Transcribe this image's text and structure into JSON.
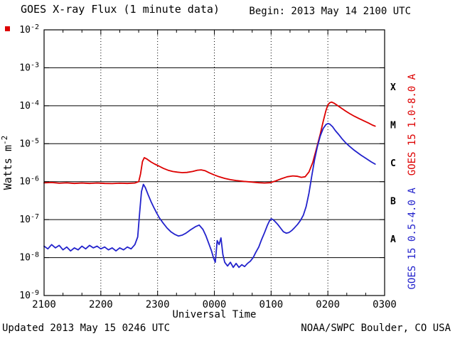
{
  "header": {
    "title": "GOES X-ray Flux (1 minute data)",
    "begin": "Begin: 2013 May 14 2100 UTC"
  },
  "footer": {
    "updated": "Updated 2013 May 15 0246 UTC",
    "source": "NOAA/SWPC Boulder, CO USA"
  },
  "chart_data": {
    "type": "line",
    "title": "GOES X-ray Flux (1 minute data)",
    "xlabel": "Universal Time",
    "ylabel_base": "Watts m",
    "ylabel_exponent": "-2",
    "x_tick_labels": [
      "2100",
      "2200",
      "2300",
      "0000",
      "0100",
      "0200",
      "0300"
    ],
    "x_range_minutes": [
      0,
      360
    ],
    "y_tick_labels": [
      "10^-2",
      "10^-3",
      "10^-4",
      "10^-5",
      "10^-6",
      "10^-7",
      "10^-8",
      "10^-9"
    ],
    "y_log_range": [
      -9,
      -2
    ],
    "grid": {
      "horizontal": "solid line per decade",
      "vertical": "dotted line per hour"
    },
    "flare_classes": [
      {
        "label": "X",
        "log_center": -3.5
      },
      {
        "label": "M",
        "log_center": -4.5
      },
      {
        "label": "C",
        "log_center": -5.5
      },
      {
        "label": "B",
        "log_center": -6.5
      },
      {
        "label": "A",
        "log_center": -7.5
      }
    ],
    "points_format": "[minutes since 2100 UTC, watts per square meter]",
    "series": [
      {
        "id": "goes15-long",
        "name": "GOES 15 1.0-8.0 A",
        "color": "#dd0000",
        "points": [
          [
            0,
            9.3e-07
          ],
          [
            8,
            9.5e-07
          ],
          [
            16,
            9.1e-07
          ],
          [
            24,
            9.3e-07
          ],
          [
            32,
            9e-07
          ],
          [
            40,
            9.2e-07
          ],
          [
            48,
            9e-07
          ],
          [
            56,
            9.2e-07
          ],
          [
            64,
            9e-07
          ],
          [
            72,
            8.9e-07
          ],
          [
            80,
            9.1e-07
          ],
          [
            88,
            9e-07
          ],
          [
            96,
            9.2e-07
          ],
          [
            100,
            1e-06
          ],
          [
            102,
            1.6e-06
          ],
          [
            104,
            3.4e-06
          ],
          [
            106,
            4.3e-06
          ],
          [
            109,
            3.9e-06
          ],
          [
            113,
            3.3e-06
          ],
          [
            117,
            2.9e-06
          ],
          [
            121,
            2.6e-06
          ],
          [
            126,
            2.25e-06
          ],
          [
            131,
            2e-06
          ],
          [
            136,
            1.85e-06
          ],
          [
            141,
            1.78e-06
          ],
          [
            146,
            1.73e-06
          ],
          [
            151,
            1.75e-06
          ],
          [
            157,
            1.85e-06
          ],
          [
            162,
            2e-06
          ],
          [
            166,
            2.05e-06
          ],
          [
            170,
            1.95e-06
          ],
          [
            175,
            1.7e-06
          ],
          [
            180,
            1.5e-06
          ],
          [
            185,
            1.35e-06
          ],
          [
            191,
            1.22e-06
          ],
          [
            197,
            1.13e-06
          ],
          [
            203,
            1.07e-06
          ],
          [
            211,
            1.02e-06
          ],
          [
            219,
            9.8e-07
          ],
          [
            227,
            9.4e-07
          ],
          [
            233,
            9.2e-07
          ],
          [
            239,
            9.4e-07
          ],
          [
            245,
            1.05e-06
          ],
          [
            251,
            1.2e-06
          ],
          [
            257,
            1.35e-06
          ],
          [
            263,
            1.42e-06
          ],
          [
            268,
            1.38e-06
          ],
          [
            272,
            1.3e-06
          ],
          [
            276,
            1.35e-06
          ],
          [
            280,
            1.8e-06
          ],
          [
            284,
            3.2e-06
          ],
          [
            288,
            7.5e-06
          ],
          [
            292,
            1.8e-05
          ],
          [
            295,
            3.8e-05
          ],
          [
            298,
            7.5e-05
          ],
          [
            300,
            0.000105
          ],
          [
            302,
            0.00012
          ],
          [
            304,
            0.000125
          ],
          [
            307,
            0.000115
          ],
          [
            311,
            9.8e-05
          ],
          [
            315,
            8.4e-05
          ],
          [
            319,
            7.2e-05
          ],
          [
            323,
            6.2e-05
          ],
          [
            328,
            5.3e-05
          ],
          [
            333,
            4.6e-05
          ],
          [
            338,
            4e-05
          ],
          [
            343,
            3.5e-05
          ],
          [
            347,
            3.1e-05
          ],
          [
            350,
            2.9e-05
          ]
        ]
      },
      {
        "id": "goes15-short",
        "name": "GOES 15 0.5-4.0 A",
        "color": "#2222cc",
        "points": [
          [
            0,
            2e-08
          ],
          [
            4,
            1.7e-08
          ],
          [
            8,
            2.2e-08
          ],
          [
            12,
            1.8e-08
          ],
          [
            16,
            2.1e-08
          ],
          [
            20,
            1.6e-08
          ],
          [
            24,
            1.9e-08
          ],
          [
            28,
            1.5e-08
          ],
          [
            32,
            1.8e-08
          ],
          [
            36,
            1.6e-08
          ],
          [
            40,
            2e-08
          ],
          [
            44,
            1.7e-08
          ],
          [
            48,
            2.1e-08
          ],
          [
            52,
            1.8e-08
          ],
          [
            56,
            2e-08
          ],
          [
            60,
            1.7e-08
          ],
          [
            64,
            1.9e-08
          ],
          [
            68,
            1.6e-08
          ],
          [
            72,
            1.8e-08
          ],
          [
            76,
            1.5e-08
          ],
          [
            80,
            1.8e-08
          ],
          [
            84,
            1.6e-08
          ],
          [
            88,
            1.9e-08
          ],
          [
            92,
            1.7e-08
          ],
          [
            96,
            2.2e-08
          ],
          [
            99,
            3.5e-08
          ],
          [
            101,
            1.5e-07
          ],
          [
            103,
            5.5e-07
          ],
          [
            105,
            8.5e-07
          ],
          [
            107,
            7e-07
          ],
          [
            110,
            4.5e-07
          ],
          [
            113,
            3e-07
          ],
          [
            116,
            2.1e-07
          ],
          [
            119,
            1.5e-07
          ],
          [
            122,
            1.1e-07
          ],
          [
            126,
            8e-08
          ],
          [
            130,
            6e-08
          ],
          [
            134,
            4.8e-08
          ],
          [
            138,
            4.1e-08
          ],
          [
            142,
            3.7e-08
          ],
          [
            146,
            3.9e-08
          ],
          [
            150,
            4.4e-08
          ],
          [
            155,
            5.4e-08
          ],
          [
            160,
            6.5e-08
          ],
          [
            164,
            7.2e-08
          ],
          [
            168,
            5.5e-08
          ],
          [
            171,
            3.8e-08
          ],
          [
            174,
            2.4e-08
          ],
          [
            177,
            1.5e-08
          ],
          [
            179,
            1e-08
          ],
          [
            181,
            7.5e-09
          ],
          [
            183,
            2.8e-08
          ],
          [
            185,
            2.2e-08
          ],
          [
            187,
            3.3e-08
          ],
          [
            189,
            1.2e-08
          ],
          [
            191,
            7.5e-09
          ],
          [
            194,
            6e-09
          ],
          [
            197,
            7.5e-09
          ],
          [
            200,
            5.5e-09
          ],
          [
            203,
            7e-09
          ],
          [
            206,
            5.5e-09
          ],
          [
            209,
            6.5e-09
          ],
          [
            212,
            5.8e-09
          ],
          [
            215,
            7e-09
          ],
          [
            218,
            8e-09
          ],
          [
            221,
            1e-08
          ],
          [
            224,
            1.4e-08
          ],
          [
            227,
            1.9e-08
          ],
          [
            230,
            3e-08
          ],
          [
            233,
            4.5e-08
          ],
          [
            236,
            7e-08
          ],
          [
            238,
            9e-08
          ],
          [
            240,
            1.05e-07
          ],
          [
            242,
            1e-07
          ],
          [
            244,
            9e-08
          ],
          [
            247,
            7.5e-08
          ],
          [
            250,
            6e-08
          ],
          [
            253,
            4.8e-08
          ],
          [
            256,
            4.4e-08
          ],
          [
            259,
            4.6e-08
          ],
          [
            262,
            5.2e-08
          ],
          [
            265,
            6.2e-08
          ],
          [
            268,
            7.5e-08
          ],
          [
            271,
            9.5e-08
          ],
          [
            274,
            1.3e-07
          ],
          [
            277,
            2.2e-07
          ],
          [
            280,
            5e-07
          ],
          [
            283,
            1.4e-06
          ],
          [
            286,
            3.8e-06
          ],
          [
            289,
            8.5e-06
          ],
          [
            292,
            1.6e-05
          ],
          [
            295,
            2.5e-05
          ],
          [
            298,
            3.2e-05
          ],
          [
            300,
            3.4e-05
          ],
          [
            302,
            3.3e-05
          ],
          [
            305,
            2.8e-05
          ],
          [
            308,
            2.2e-05
          ],
          [
            311,
            1.8e-05
          ],
          [
            315,
            1.35e-05
          ],
          [
            319,
            1.05e-05
          ],
          [
            323,
            8.5e-06
          ],
          [
            327,
            7e-06
          ],
          [
            331,
            5.9e-06
          ],
          [
            335,
            5e-06
          ],
          [
            339,
            4.3e-06
          ],
          [
            343,
            3.7e-06
          ],
          [
            346,
            3.3e-06
          ],
          [
            350,
            2.9e-06
          ]
        ]
      }
    ]
  }
}
